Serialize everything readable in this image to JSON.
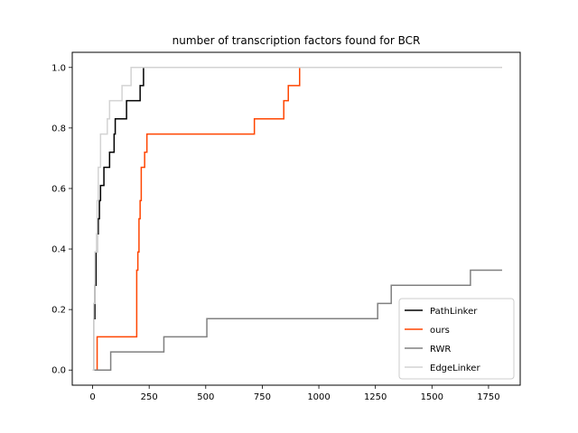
{
  "chart_data": {
    "type": "line",
    "title": "number of transcription factors found for BCR",
    "xlabel": "",
    "ylabel": "",
    "xlim": [
      -90,
      1890
    ],
    "ylim": [
      -0.05,
      1.05
    ],
    "xticks": [
      0,
      250,
      500,
      750,
      1000,
      1250,
      1500,
      1750
    ],
    "yticks": [
      0.0,
      0.2,
      0.4,
      0.6,
      0.8,
      1.0
    ],
    "xtick_labels": [
      "0",
      "250",
      "500",
      "750",
      "1000",
      "1250",
      "1500",
      "1750"
    ],
    "ytick_labels": [
      "0.0",
      "0.2",
      "0.4",
      "0.6",
      "0.8",
      "1.0"
    ],
    "grid": false,
    "legend_position": "lower-right",
    "series": [
      {
        "name": "PathLinker",
        "color": "#000000",
        "points": [
          [
            0,
            0
          ],
          [
            5,
            0.17
          ],
          [
            10,
            0.28
          ],
          [
            15,
            0.39
          ],
          [
            20,
            0.45
          ],
          [
            25,
            0.5
          ],
          [
            30,
            0.56
          ],
          [
            35,
            0.61
          ],
          [
            50,
            0.67
          ],
          [
            75,
            0.72
          ],
          [
            95,
            0.78
          ],
          [
            100,
            0.83
          ],
          [
            150,
            0.89
          ],
          [
            210,
            0.94
          ],
          [
            225,
            1.0
          ],
          [
            1810,
            1.0
          ]
        ]
      },
      {
        "name": "ours",
        "color": "#ff4500",
        "points": [
          [
            0,
            0
          ],
          [
            20,
            0.11
          ],
          [
            195,
            0.33
          ],
          [
            200,
            0.39
          ],
          [
            205,
            0.5
          ],
          [
            210,
            0.56
          ],
          [
            215,
            0.67
          ],
          [
            230,
            0.72
          ],
          [
            240,
            0.78
          ],
          [
            715,
            0.83
          ],
          [
            845,
            0.89
          ],
          [
            865,
            0.94
          ],
          [
            915,
            1.0
          ],
          [
            1810,
            1.0
          ]
        ]
      },
      {
        "name": "RWR",
        "color": "#808080",
        "points": [
          [
            0,
            0
          ],
          [
            80,
            0.06
          ],
          [
            315,
            0.11
          ],
          [
            505,
            0.17
          ],
          [
            1260,
            0.22
          ],
          [
            1320,
            0.28
          ],
          [
            1670,
            0.33
          ],
          [
            1810,
            0.33
          ]
        ]
      },
      {
        "name": "EdgeLinker",
        "color": "#d3d3d3",
        "points": [
          [
            0,
            0
          ],
          [
            5,
            0.22
          ],
          [
            10,
            0.39
          ],
          [
            20,
            0.56
          ],
          [
            25,
            0.67
          ],
          [
            35,
            0.78
          ],
          [
            65,
            0.83
          ],
          [
            75,
            0.89
          ],
          [
            130,
            0.94
          ],
          [
            170,
            1.0
          ],
          [
            1810,
            1.0
          ]
        ]
      }
    ]
  }
}
